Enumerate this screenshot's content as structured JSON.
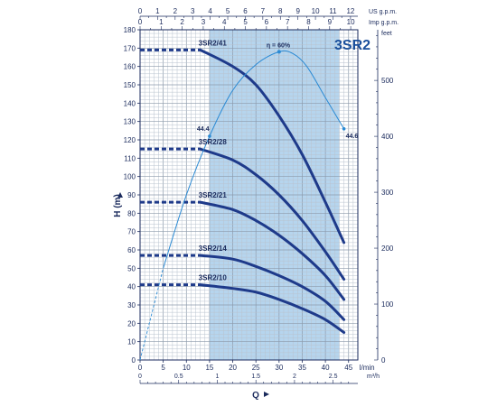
{
  "chart_data": {
    "type": "line",
    "title": "3SR2",
    "xlabel": "Q",
    "ylabel": "H  (m)",
    "x_unit": "l/min",
    "xlim": [
      0,
      47
    ],
    "ylim": [
      0,
      180
    ],
    "grid": true,
    "x_ticks": [
      "0",
      "5",
      "10",
      "15",
      "20",
      "25",
      "30",
      "35",
      "40",
      "45"
    ],
    "y_ticks": [
      "0",
      "10",
      "20",
      "30",
      "40",
      "50",
      "60",
      "70",
      "80",
      "90",
      "100",
      "110",
      "120",
      "130",
      "140",
      "150",
      "160",
      "170",
      "180"
    ],
    "secondary_axes": {
      "us_gpm": {
        "label": "US g.p.m.",
        "ticks": [
          "0",
          "1",
          "2",
          "3",
          "4",
          "5",
          "6",
          "7",
          "8",
          "9",
          "10",
          "11",
          "12"
        ]
      },
      "imp_gpm": {
        "label": "Imp g.p.m.",
        "ticks": [
          "0",
          "1",
          "2",
          "3",
          "4",
          "5",
          "6",
          "7",
          "8",
          "9",
          "10"
        ]
      },
      "m3h": {
        "label": "m³/h",
        "ticks": [
          "0",
          "0.5",
          "1",
          "1.5",
          "2",
          "2.5"
        ]
      },
      "feet": {
        "label": "feet",
        "ticks": [
          "0",
          "100",
          "200",
          "300",
          "400",
          "500"
        ]
      }
    },
    "recommended_range": [
      15,
      43
    ],
    "series": [
      {
        "name": "3SR2/41",
        "x": [
          13,
          20,
          25,
          30,
          35,
          40,
          44
        ],
        "y": [
          169,
          160,
          150,
          133,
          112,
          86,
          64
        ],
        "dashed_until": 15
      },
      {
        "name": "3SR2/28",
        "x": [
          13,
          20,
          25,
          30,
          35,
          40,
          44
        ],
        "y": [
          115,
          109,
          101,
          90,
          76,
          59,
          44
        ],
        "dashed_until": 15
      },
      {
        "name": "3SR2/21",
        "x": [
          13,
          20,
          25,
          30,
          35,
          40,
          44
        ],
        "y": [
          86,
          82,
          76,
          68,
          58,
          46,
          33
        ],
        "dashed_until": 15
      },
      {
        "name": "3SR2/14",
        "x": [
          13,
          20,
          25,
          30,
          35,
          40,
          44
        ],
        "y": [
          57,
          55,
          51,
          46,
          40,
          32,
          22
        ],
        "dashed_until": 15
      },
      {
        "name": "3SR2/10",
        "x": [
          13,
          20,
          25,
          30,
          35,
          40,
          44
        ],
        "y": [
          41,
          39,
          37,
          33,
          28,
          22,
          15
        ],
        "dashed_until": 15
      }
    ],
    "curve_start_x": 0,
    "efficiency": {
      "label": "η = 60%",
      "left_label": "44.4",
      "right_label": "44.6",
      "x": [
        5,
        10,
        15,
        20,
        25,
        30,
        33,
        36,
        40,
        44
      ],
      "y": [
        50,
        90,
        122,
        147,
        161,
        168,
        167,
        160,
        143,
        126
      ],
      "dashed_until": 10,
      "dashed_from": [
        0,
        0
      ]
    }
  }
}
